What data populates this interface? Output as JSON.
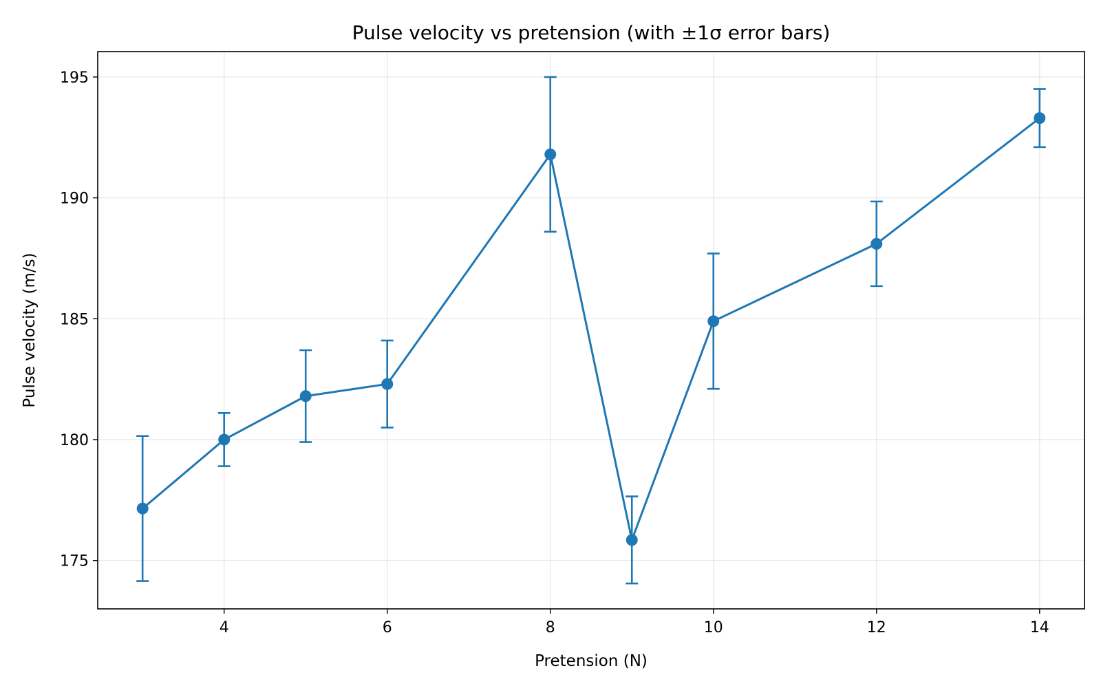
{
  "chart_data": {
    "type": "line",
    "title": "Pulse velocity vs pretension (with ±1σ error bars)",
    "xlabel": "Pretension (N)",
    "ylabel": "Pulse velocity (m/s)",
    "xlim": [
      2.45,
      14.55
    ],
    "ylim": [
      173.0,
      196.05
    ],
    "x_ticks": [
      4,
      6,
      8,
      10,
      12,
      14
    ],
    "y_ticks": [
      175,
      180,
      185,
      190,
      195
    ],
    "grid": true,
    "legend": "none",
    "color": "#1f77b4",
    "series": [
      {
        "x": [
          3,
          4,
          5,
          6,
          8,
          9,
          10,
          12,
          14
        ],
        "y": [
          177.15,
          180.0,
          181.8,
          182.3,
          191.8,
          175.85,
          184.9,
          188.1,
          193.3
        ],
        "error": [
          3.0,
          1.1,
          1.9,
          1.8,
          3.2,
          1.8,
          2.8,
          1.75,
          1.2
        ]
      }
    ]
  }
}
